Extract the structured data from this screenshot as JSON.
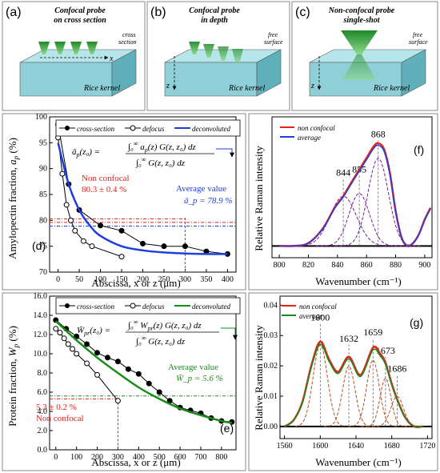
{
  "panels_top": {
    "a": {
      "letter": "(a)",
      "title": "Confocal probe\non cross section",
      "annot": "cross\nsection",
      "axis": "x",
      "block": "Rice kernel"
    },
    "b": {
      "letter": "(b)",
      "title": "Confocal probe\nin depth",
      "annot": "free\nsurface",
      "axis": "z",
      "block": "Rice kernel"
    },
    "c": {
      "letter": "(c)",
      "title": "Non-confocal probe\nsingle-shot",
      "annot": "free\nsurface",
      "axis": "z",
      "block": "Rice kernel"
    }
  },
  "panel_d": {
    "letter": "(d)",
    "ylabel": "Amylopectin fraction, a_p (%)",
    "xlabel": "Abscissa, x or z (μm)",
    "legend": [
      "cross-section",
      "defocus",
      "deconvoluted"
    ],
    "formula": "ā_p(z₀) = ∫₀^∞ a_p(z) G(z,z₀) dz / ∫₀^∞ G(z,z₀) dz",
    "nonconfocal_label": "Non confocal",
    "nonconfocal_value": "80.3 ± 0.4 %",
    "average_label": "Average value",
    "average_value": "ā_p = 78.9 %"
  },
  "panel_e": {
    "letter": "(e)",
    "ylabel": "Protein fraction, W_p (%)",
    "xlabel": "Abscissa, x or z (μm)",
    "legend": [
      "cross-section",
      "defocus",
      "deconvoluted"
    ],
    "formula": "W̄_pr(z₀) = ∫₀^∞ W_pr(z) G(z,z₀) dz / ∫₀^∞ G(z,z₀) dz",
    "nonconfocal_value": "5.3 ± 0.2 %",
    "nonconfocal_label": "Non confocal",
    "average_label": "Average value",
    "average_value": "W̄_p = 5.6 %"
  },
  "panel_f": {
    "letter": "(f)",
    "ylabel": "Relative Raman intensity",
    "xlabel": "Wavenumber (cm⁻¹)",
    "legend": [
      "non confocal",
      "average"
    ],
    "peaks": [
      "844",
      "855",
      "868"
    ]
  },
  "panel_g": {
    "letter": "(g)",
    "ylabel": "Relative Raman intensity",
    "xlabel": "Wavenumber (cm⁻¹)",
    "legend": [
      "non confocal",
      "average"
    ],
    "peaks": [
      "1600",
      "1632",
      "1659",
      "1673",
      "1686"
    ]
  },
  "colors": {
    "red": "#e2231a",
    "blue": "#1f3fe0",
    "green": "#1a8c1a",
    "purple": "#7a1fa0",
    "block": "#8fd0d8",
    "blockTop": "#b6e6ea",
    "blockSide": "#5fb0bb",
    "probe": "#3aa04a"
  },
  "chart_data": [
    {
      "type": "line",
      "title": "",
      "xlabel": "Abscissa, x or z (μm)",
      "ylabel": "Amylopectin fraction, a_p (%)",
      "xlim": [
        -20,
        420
      ],
      "ylim": [
        70,
        100
      ],
      "xticks": [
        0,
        50,
        100,
        150,
        200,
        250,
        300,
        350,
        400
      ],
      "yticks": [
        70,
        75,
        80,
        85,
        90,
        95,
        100
      ],
      "series": [
        {
          "name": "cross-section",
          "x": [
            0,
            25,
            50,
            100,
            150,
            200,
            250,
            300,
            350,
            400
          ],
          "y": [
            98.5,
            87,
            82,
            79,
            78,
            75.5,
            75,
            75,
            74,
            73.5
          ]
        },
        {
          "name": "defocus",
          "x": [
            0,
            10,
            20,
            30,
            40,
            60,
            80,
            150
          ],
          "y": [
            96,
            89,
            83,
            80,
            78,
            76,
            75,
            73
          ]
        },
        {
          "name": "deconvoluted",
          "x": [
            0,
            25,
            50,
            75,
            100,
            150,
            200,
            250,
            300,
            350,
            400
          ],
          "y": [
            95,
            87,
            82,
            79,
            77,
            75,
            74.2,
            73.8,
            73.6,
            73.5,
            73.5
          ]
        }
      ]
    },
    {
      "type": "line",
      "title": "",
      "xlabel": "Abscissa, x or z (μm)",
      "ylabel": "Protein fraction, W_p (%)",
      "xlim": [
        -30,
        870
      ],
      "ylim": [
        0,
        16
      ],
      "xticks": [
        0,
        100,
        200,
        300,
        400,
        500,
        600,
        700,
        800
      ],
      "yticks": [
        0,
        2,
        4,
        6,
        8,
        10,
        12,
        14,
        16
      ],
      "series": [
        {
          "name": "cross-section",
          "x": [
            0,
            50,
            100,
            150,
            200,
            250,
            300,
            350,
            400,
            450,
            500,
            550,
            600,
            650,
            700,
            750,
            800,
            850
          ],
          "y": [
            13.5,
            12.6,
            11.8,
            11.0,
            10.1,
            9.6,
            9.2,
            8.4,
            7.9,
            6.9,
            6.0,
            5.1,
            4.4,
            4.1,
            3.8,
            3.3,
            3.0,
            2.9
          ]
        },
        {
          "name": "defocus",
          "x": [
            0,
            20,
            40,
            60,
            80,
            100,
            150,
            200,
            300
          ],
          "y": [
            12.6,
            12.2,
            11.6,
            11.0,
            10.5,
            10.0,
            9.0,
            7.8,
            5.1
          ]
        },
        {
          "name": "deconvoluted",
          "x": [
            0,
            100,
            200,
            300,
            400,
            500,
            600,
            700,
            800,
            850
          ],
          "y": [
            13.4,
            11.4,
            9.6,
            8.0,
            6.5,
            5.3,
            4.3,
            3.6,
            3.0,
            2.8
          ]
        }
      ]
    },
    {
      "type": "line",
      "title": "",
      "xlabel": "Wavenumber (cm⁻¹)",
      "ylabel": "Relative Raman intensity",
      "xlim": [
        795,
        905
      ],
      "ylim": [
        -0.04,
        0.44
      ],
      "xticks": [
        800,
        820,
        840,
        860,
        880,
        900
      ],
      "series": [
        {
          "name": "non confocal",
          "x": [
            800,
            810,
            820,
            830,
            838,
            844,
            850,
            855,
            860,
            865,
            868,
            872,
            876,
            880,
            884,
            888,
            892,
            896,
            900,
            904
          ],
          "y": [
            0,
            0,
            0.01,
            0.06,
            0.13,
            0.17,
            0.22,
            0.26,
            0.3,
            0.34,
            0.35,
            0.33,
            0.25,
            0.12,
            0.03,
            0.0,
            0.01,
            0.04,
            0.09,
            0.13
          ]
        },
        {
          "name": "average",
          "x": [
            800,
            810,
            820,
            830,
            838,
            844,
            850,
            855,
            860,
            865,
            868,
            872,
            876,
            880,
            884,
            888,
            892,
            896,
            900,
            904
          ],
          "y": [
            0,
            0,
            0.01,
            0.06,
            0.13,
            0.17,
            0.22,
            0.26,
            0.3,
            0.34,
            0.35,
            0.33,
            0.25,
            0.12,
            0.03,
            0.0,
            0.01,
            0.04,
            0.09,
            0.13
          ]
        }
      ]
    },
    {
      "type": "line",
      "title": "",
      "xlabel": "Wavenumber (cm⁻¹)",
      "ylabel": "Relative Raman intensity",
      "xlim": [
        1555,
        1725
      ],
      "ylim": [
        -0.004,
        0.043
      ],
      "xticks": [
        1560,
        1600,
        1640,
        1680,
        1720
      ],
      "yticks": [
        0.0,
        0.01,
        0.02,
        0.03,
        0.04
      ],
      "series": [
        {
          "name": "non confocal",
          "x": [
            1560,
            1570,
            1580,
            1590,
            1600,
            1610,
            1620,
            1632,
            1645,
            1659,
            1667,
            1673,
            1680,
            1686,
            1695,
            1705,
            1715
          ],
          "y": [
            0,
            0.002,
            0.008,
            0.02,
            0.028,
            0.022,
            0.018,
            0.023,
            0.017,
            0.026,
            0.024,
            0.021,
            0.014,
            0.009,
            0.003,
            0.0,
            0.0
          ]
        },
        {
          "name": "average",
          "x": [
            1560,
            1570,
            1580,
            1590,
            1600,
            1610,
            1620,
            1632,
            1645,
            1659,
            1667,
            1673,
            1680,
            1686,
            1695,
            1705,
            1715
          ],
          "y": [
            0,
            0.002,
            0.008,
            0.02,
            0.028,
            0.022,
            0.018,
            0.023,
            0.017,
            0.026,
            0.024,
            0.021,
            0.014,
            0.009,
            0.003,
            0.0,
            0.0
          ]
        }
      ]
    }
  ]
}
